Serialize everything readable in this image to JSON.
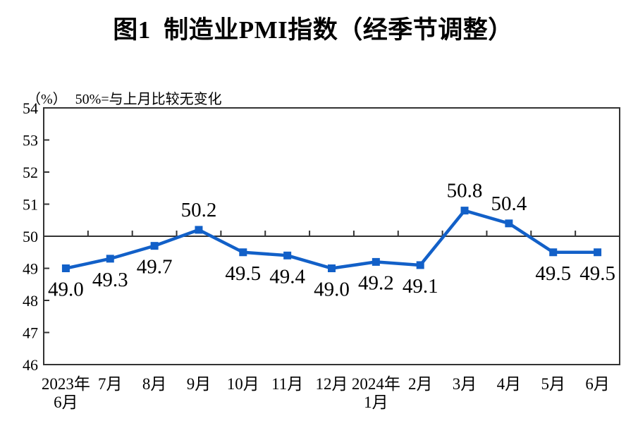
{
  "title": "图1  制造业PMI指数（经季节调整）",
  "subtitle": {
    "unit": "（%）",
    "note": "50%=与上月比较无变化"
  },
  "chart_data": {
    "type": "line",
    "categories": [
      [
        "2023年",
        "6月"
      ],
      [
        "7月"
      ],
      [
        "8月"
      ],
      [
        "9月"
      ],
      [
        "10月"
      ],
      [
        "11月"
      ],
      [
        "12月"
      ],
      [
        "2024年",
        "1月"
      ],
      [
        "2月"
      ],
      [
        "3月"
      ],
      [
        "4月"
      ],
      [
        "5月"
      ],
      [
        "6月"
      ]
    ],
    "series": [
      {
        "name": "制造业PMI指数",
        "values": [
          49.0,
          49.3,
          49.7,
          50.2,
          49.5,
          49.4,
          49.0,
          49.2,
          49.1,
          50.8,
          50.4,
          49.5,
          49.5
        ]
      }
    ],
    "ylim": [
      46,
      54
    ],
    "ytick_step": 1,
    "reference_line": 50,
    "data_label_decimals": 1,
    "line_color": "#1260C8",
    "axis_color": "#333333",
    "marker": "square",
    "grid": false,
    "legend": "none",
    "title": "图1  制造业PMI指数（经季节调整）",
    "xlabel": "",
    "ylabel": "（%）"
  }
}
